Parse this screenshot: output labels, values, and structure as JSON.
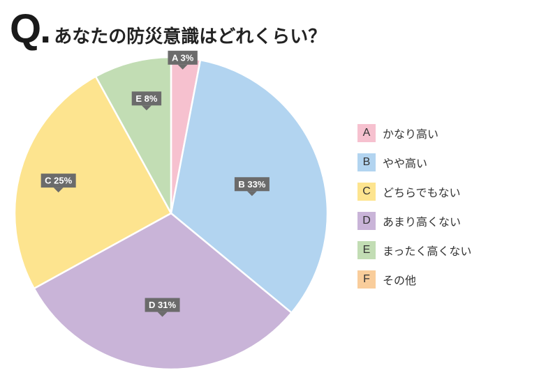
{
  "question": {
    "mark": "Q.",
    "text": "あなたの防災意識はどれくらい？"
  },
  "chart_data": {
    "type": "pie",
    "start_angle_deg": 0,
    "direction": "clockwise",
    "slices": [
      {
        "key": "A",
        "label": "かなり高い",
        "value": 3,
        "color": "#f6c1cf",
        "callout": "A 3%"
      },
      {
        "key": "B",
        "label": "やや高い",
        "value": 33,
        "color": "#b2d4f0",
        "callout": "B 33%"
      },
      {
        "key": "D",
        "label": "あまり高くない",
        "value": 31,
        "color": "#c9b4d8",
        "callout": "D 31%"
      },
      {
        "key": "C",
        "label": "どちらでもない",
        "value": 25,
        "color": "#fde48f",
        "callout": "C 25%"
      },
      {
        "key": "E",
        "label": "まったく高くない",
        "value": 8,
        "color": "#c2ddb4",
        "callout": "E 8%"
      }
    ],
    "legend": [
      {
        "key": "A",
        "label": "かなり高い",
        "color": "#f6c1cf"
      },
      {
        "key": "B",
        "label": "やや高い",
        "color": "#b2d4f0"
      },
      {
        "key": "C",
        "label": "どちらでもない",
        "color": "#fde48f"
      },
      {
        "key": "D",
        "label": "あまり高くない",
        "color": "#c9b4d8"
      },
      {
        "key": "E",
        "label": "まったく高くない",
        "color": "#c2ddb4"
      },
      {
        "key": "F",
        "label": "その他",
        "color": "#f9cd9b"
      }
    ],
    "legend_position": "right",
    "callout_color": "#6b6b6b"
  }
}
